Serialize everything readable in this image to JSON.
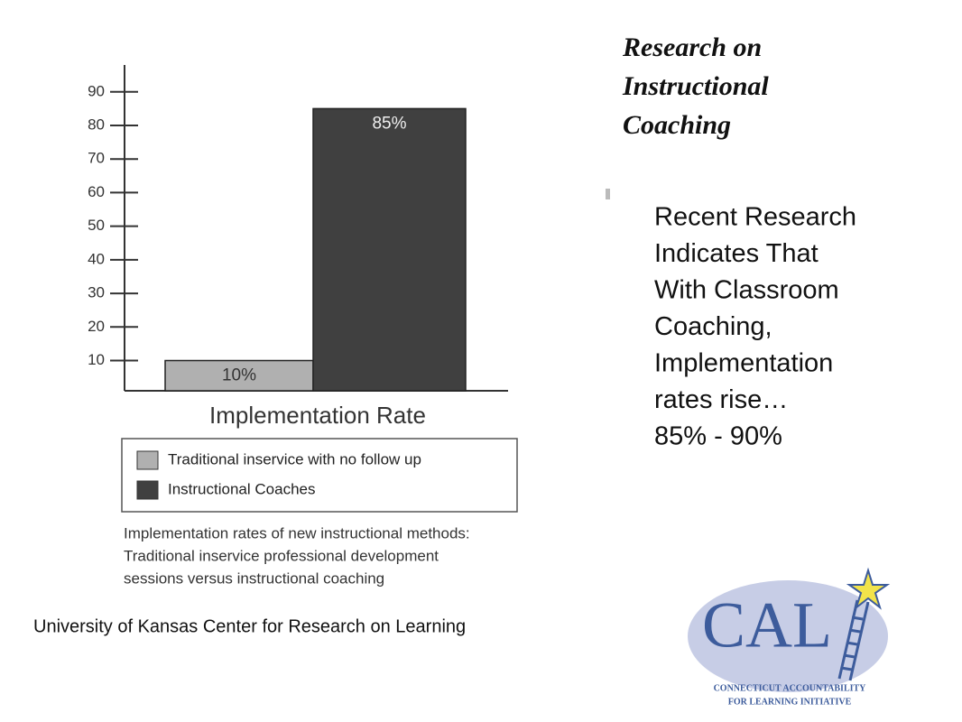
{
  "chart_data": {
    "type": "bar",
    "x_label": "Implementation Rate",
    "categories": [
      null
    ],
    "series": [
      {
        "name": "Traditional inservice with no follow up",
        "color": "#b0b0b0",
        "values": [
          10
        ],
        "value_labels": [
          "10%"
        ]
      },
      {
        "name": "Instructional Coaches",
        "color": "#404040",
        "values": [
          85
        ],
        "value_labels": [
          "85%"
        ]
      }
    ],
    "ylim": [
      1,
      98
    ],
    "yticks": [
      10,
      20,
      30,
      40,
      50,
      60,
      70,
      80,
      90
    ],
    "caption": [
      "Implementation rates of new instructional methods:",
      "Traditional inservice professional development",
      "sessions versus instructional coaching"
    ]
  },
  "slide": {
    "title": [
      "Research on",
      "Instructional",
      "Coaching"
    ],
    "body": [
      "Recent Research",
      "Indicates That",
      "With Classroom",
      "Coaching,",
      "Implementation",
      "rates rise…",
      "85% - 90%"
    ],
    "source": "University of Kansas Center for Research on Learning",
    "logo": {
      "mark": "CAL",
      "lines": [
        "CONNECTICUT ACCOUNTABILITY",
        "FOR LEARNING INITIATIVE"
      ]
    }
  }
}
